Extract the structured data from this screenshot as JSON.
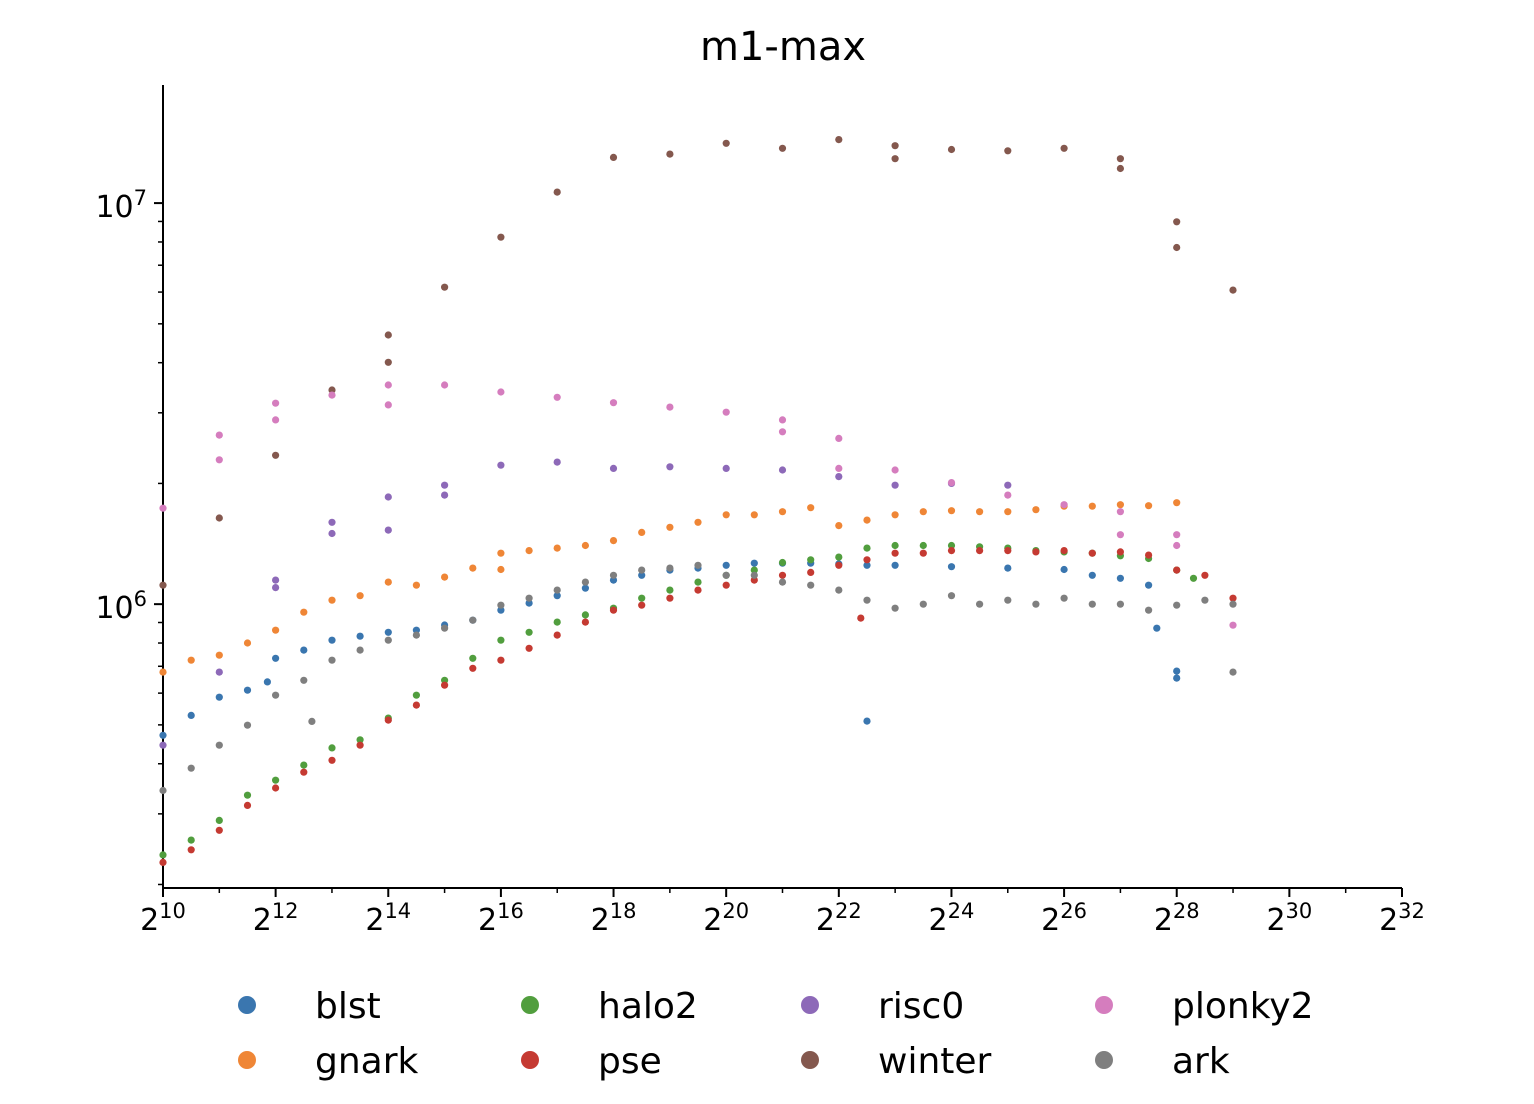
{
  "chart_data": {
    "type": "scatter",
    "title": "m1-max",
    "xlabel": "",
    "ylabel": "",
    "x_scale": "log2",
    "y_scale": "log10",
    "xlim": [
      1024,
      4294967296
    ],
    "ylim": [
      196000,
      19700000
    ],
    "grid": false,
    "legend_placement": "bottom",
    "x_ticks": [
      {
        "value": 1024,
        "base": "2",
        "exp": "10"
      },
      {
        "value": 4096,
        "base": "2",
        "exp": "12"
      },
      {
        "value": 16384,
        "base": "2",
        "exp": "14"
      },
      {
        "value": 65536,
        "base": "2",
        "exp": "16"
      },
      {
        "value": 262144,
        "base": "2",
        "exp": "18"
      },
      {
        "value": 1048576,
        "base": "2",
        "exp": "20"
      },
      {
        "value": 4194304,
        "base": "2",
        "exp": "22"
      },
      {
        "value": 16777216,
        "base": "2",
        "exp": "24"
      },
      {
        "value": 67108864,
        "base": "2",
        "exp": "26"
      },
      {
        "value": 268435456,
        "base": "2",
        "exp": "28"
      },
      {
        "value": 1073741824,
        "base": "2",
        "exp": "30"
      },
      {
        "value": 4294967296,
        "base": "2",
        "exp": "32"
      }
    ],
    "y_ticks": [
      {
        "value": 1000000,
        "base": "10",
        "exp": "6"
      },
      {
        "value": 10000000,
        "base": "10",
        "exp": "7"
      }
    ],
    "series": [
      {
        "name": "blst",
        "color": "#3a76af",
        "x": [
          1024,
          1448,
          2048,
          2896,
          3700,
          4096,
          5793,
          8192,
          11585,
          16384,
          23170,
          32768,
          46341,
          65536,
          92682,
          131072,
          185364,
          262144,
          370728,
          524288,
          741455,
          1048576,
          1482910,
          2097152,
          2965821,
          4194304,
          5931642,
          5931642,
          8388608,
          16777216,
          33554432,
          67108864,
          94906266,
          134217728,
          189812531,
          210000000,
          268435456,
          268435456
        ],
        "y": [
          471000,
          528000,
          586000,
          610000,
          640000,
          733000,
          768000,
          813000,
          832000,
          851000,
          861000,
          887000,
          912000,
          966000,
          1006000,
          1050000,
          1096000,
          1148000,
          1180000,
          1216000,
          1230000,
          1250000,
          1265000,
          1265000,
          1265000,
          1260000,
          1250000,
          511000,
          1250000,
          1240000,
          1230000,
          1220000,
          1180000,
          1160000,
          1115000,
          871000,
          681000,
          654000
        ]
      },
      {
        "name": "gnark",
        "color": "#ef8636",
        "x": [
          1024,
          1448,
          2048,
          2896,
          4096,
          5793,
          8192,
          11585,
          16384,
          23170,
          32768,
          46341,
          65536,
          65536,
          92682,
          131072,
          185364,
          262144,
          370728,
          524288,
          741455,
          1048576,
          1482910,
          2097152,
          2965821,
          4194304,
          5931642,
          8388608,
          11863283,
          16777216,
          23726566,
          33554432,
          47453133,
          67108864,
          94906266,
          134217728,
          189812531,
          268435456
        ],
        "y": [
          677000,
          725000,
          746000,
          800000,
          861000,
          955000,
          1023000,
          1050000,
          1135000,
          1115000,
          1168000,
          1230000,
          1340000,
          1220000,
          1360000,
          1380000,
          1400000,
          1440000,
          1510000,
          1555000,
          1600000,
          1670000,
          1670000,
          1700000,
          1740000,
          1570000,
          1620000,
          1670000,
          1700000,
          1710000,
          1700000,
          1700000,
          1720000,
          1755000,
          1755000,
          1770000,
          1760000,
          1790000
        ]
      },
      {
        "name": "halo2",
        "color": "#519e3e",
        "x": [
          1024,
          1448,
          2048,
          2896,
          4096,
          5793,
          8192,
          11585,
          16384,
          23170,
          32768,
          46341,
          65536,
          92682,
          131072,
          185364,
          262144,
          370728,
          524288,
          741455,
          1048576,
          1482910,
          2097152,
          2965821,
          4194304,
          5931642,
          8388608,
          11863283,
          16777216,
          23726566,
          33554432,
          47453133,
          67108864,
          94906266,
          134217728,
          189812531,
          268435456,
          330000000
        ],
        "y": [
          237000,
          258000,
          289000,
          334000,
          364000,
          397000,
          438000,
          459000,
          520000,
          593000,
          646000,
          733000,
          813000,
          851000,
          902000,
          940000,
          977000,
          1035000,
          1084000,
          1135000,
          1180000,
          1216000,
          1270000,
          1290000,
          1310000,
          1380000,
          1400000,
          1400000,
          1400000,
          1390000,
          1380000,
          1360000,
          1350000,
          1340000,
          1320000,
          1300000,
          1216000,
          1160000
        ]
      },
      {
        "name": "pse",
        "color": "#c53a32",
        "x": [
          1024,
          1448,
          2048,
          2896,
          4096,
          5793,
          8192,
          11585,
          16384,
          23170,
          32768,
          46341,
          65536,
          92682,
          131072,
          185364,
          262144,
          370728,
          524288,
          741455,
          1048576,
          1482910,
          2097152,
          2965821,
          4194304,
          5500000,
          5931642,
          8388608,
          11863283,
          16777216,
          23726566,
          33554432,
          47453133,
          67108864,
          94906266,
          134217728,
          189812531,
          268435456,
          379625062,
          536870912
        ],
        "y": [
          227000,
          244000,
          273000,
          315000,
          348000,
          381000,
          408000,
          445000,
          514000,
          560000,
          628000,
          692000,
          725000,
          776000,
          837000,
          902000,
          966000,
          994000,
          1035000,
          1084000,
          1115000,
          1148000,
          1180000,
          1200000,
          1250000,
          923000,
          1290000,
          1340000,
          1340000,
          1360000,
          1360000,
          1360000,
          1350000,
          1360000,
          1340000,
          1350000,
          1325000,
          1216000,
          1180000,
          1035000
        ]
      },
      {
        "name": "risc0",
        "color": "#8d69b8",
        "x": [
          1024,
          2048,
          4096,
          4096,
          8192,
          8192,
          16384,
          16384,
          32768,
          32768,
          65536,
          131072,
          262144,
          524288,
          1048576,
          2097152,
          4194304,
          8388608,
          16777216,
          33554432
        ],
        "y": [
          445000,
          677000,
          1148000,
          1100000,
          1600000,
          1500000,
          1850000,
          1530000,
          1980000,
          1870000,
          2220000,
          2260000,
          2180000,
          2200000,
          2180000,
          2160000,
          2080000,
          1980000,
          2000000,
          1980000
        ]
      },
      {
        "name": "winter",
        "color": "#84584e",
        "x": [
          1024,
          2048,
          4096,
          8192,
          16384,
          16384,
          32768,
          65536,
          131072,
          262144,
          524288,
          1048576,
          2097152,
          4194304,
          8388608,
          8388608,
          16777216,
          33554432,
          67108864,
          134217728,
          134217728,
          268435456,
          268435456,
          536870912
        ],
        "y": [
          1115000,
          1640000,
          2350000,
          3420000,
          4690000,
          4010000,
          6170000,
          8220000,
          10650000,
          13000000,
          13250000,
          14100000,
          13700000,
          14400000,
          13900000,
          12900000,
          13600000,
          13500000,
          13700000,
          12900000,
          12200000,
          8980000,
          7750000,
          6070000
        ]
      },
      {
        "name": "plonky2",
        "color": "#d57dbe",
        "x": [
          1024,
          2048,
          2048,
          4096,
          4096,
          8192,
          16384,
          16384,
          32768,
          65536,
          131072,
          262144,
          524288,
          1048576,
          2097152,
          2097152,
          4194304,
          4194304,
          8388608,
          16777216,
          33554432,
          67108864,
          134217728,
          134217728,
          268435456,
          268435456,
          536870912
        ],
        "y": [
          1735000,
          2640000,
          2290000,
          3170000,
          2880000,
          3320000,
          3520000,
          3140000,
          3520000,
          3380000,
          3280000,
          3180000,
          3100000,
          3010000,
          2880000,
          2690000,
          2590000,
          2180000,
          2160000,
          2010000,
          1870000,
          1770000,
          1700000,
          1490000,
          1490000,
          1400000,
          886000
        ]
      },
      {
        "name": "ark",
        "color": "#7f7f7f",
        "x": [
          1024,
          1448,
          2048,
          2896,
          4096,
          5793,
          6400,
          8192,
          11585,
          16384,
          23170,
          32768,
          46341,
          65536,
          92682,
          131072,
          185364,
          262144,
          370728,
          524288,
          741455,
          1048576,
          1482910,
          2097152,
          2965821,
          4194304,
          5931642,
          8388608,
          11863283,
          16777216,
          23726566,
          33554432,
          47453133,
          67108864,
          94906266,
          134217728,
          189812531,
          268435456,
          379625062,
          536870912,
          536870912
        ],
        "y": [
          343000,
          390000,
          445000,
          499000,
          593000,
          646000,
          510000,
          725000,
          768000,
          813000,
          837000,
          871000,
          912000,
          994000,
          1035000,
          1084000,
          1135000,
          1180000,
          1216000,
          1230000,
          1250000,
          1180000,
          1180000,
          1135000,
          1115000,
          1084000,
          1023000,
          977000,
          1000000,
          1050000,
          1000000,
          1023000,
          1000000,
          1035000,
          1000000,
          1000000,
          966000,
          994000,
          1023000,
          677000,
          1000000
        ]
      }
    ]
  }
}
